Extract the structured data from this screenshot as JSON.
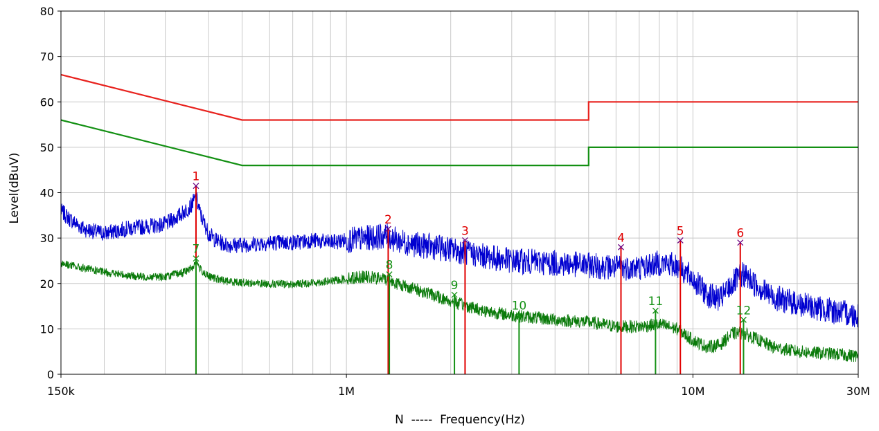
{
  "chart_data": {
    "type": "line",
    "xlabel": "N  -----  Frequency(Hz)",
    "ylabel": "Level(dBuV)",
    "x_scale": "log",
    "xlim": [
      150000,
      30000000
    ],
    "ylim": [
      0,
      80
    ],
    "grid": true,
    "y_ticks": [
      0,
      10,
      20,
      30,
      40,
      50,
      60,
      70,
      80
    ],
    "x_tick_labels": [
      {
        "x": 150000,
        "label": "150k"
      },
      {
        "x": 1000000,
        "label": "1M"
      },
      {
        "x": 10000000,
        "label": "10M"
      },
      {
        "x": 30000000,
        "label": "30M"
      }
    ],
    "colors": {
      "qp_limit": "#e8221e",
      "avg_limit": "#139013",
      "qp_trace": "#0000d0",
      "avg_trace": "#0a7a0a",
      "qp_marker": "#e00000",
      "avg_marker": "#139013",
      "grid": "#c8c8c8"
    },
    "limits": [
      {
        "id": "qp_limit",
        "points": [
          [
            150000,
            66
          ],
          [
            500000,
            56
          ],
          [
            5000000,
            56
          ],
          [
            5000000,
            60
          ],
          [
            30000000,
            60
          ]
        ]
      },
      {
        "id": "avg_limit",
        "points": [
          [
            150000,
            56
          ],
          [
            500000,
            46
          ],
          [
            5000000,
            46
          ],
          [
            5000000,
            50
          ],
          [
            30000000,
            50
          ]
        ]
      }
    ],
    "series": [
      {
        "id": "qp_trace",
        "points": [
          [
            150000,
            36
          ],
          [
            160000,
            34
          ],
          [
            175000,
            32
          ],
          [
            200000,
            31
          ],
          [
            230000,
            32
          ],
          [
            260000,
            32.5
          ],
          [
            300000,
            33
          ],
          [
            330000,
            35
          ],
          [
            355000,
            37
          ],
          [
            368000,
            39
          ],
          [
            380000,
            35
          ],
          [
            400000,
            31
          ],
          [
            420000,
            29.5
          ],
          [
            450000,
            28.5
          ],
          [
            500000,
            28.5
          ],
          [
            600000,
            29
          ],
          [
            700000,
            29
          ],
          [
            800000,
            29.5
          ],
          [
            900000,
            29
          ],
          [
            1000000,
            29.5
          ],
          [
            1150000,
            30
          ],
          [
            1300000,
            30.5
          ],
          [
            1400000,
            29.5
          ],
          [
            1600000,
            28.5
          ],
          [
            2000000,
            27.5
          ],
          [
            2500000,
            26
          ],
          [
            3000000,
            25
          ],
          [
            4000000,
            24.5
          ],
          [
            5000000,
            24
          ],
          [
            6000000,
            23.5
          ],
          [
            7000000,
            23.5
          ],
          [
            8000000,
            24.5
          ],
          [
            9000000,
            24
          ],
          [
            10000000,
            21
          ],
          [
            11000000,
            17.5
          ],
          [
            12000000,
            16.5
          ],
          [
            13000000,
            20
          ],
          [
            14000000,
            22
          ],
          [
            15000000,
            20
          ],
          [
            17000000,
            17
          ],
          [
            20000000,
            15.5
          ],
          [
            25000000,
            14
          ],
          [
            30000000,
            13
          ]
        ],
        "noise": 1.8
      },
      {
        "id": "avg_trace",
        "points": [
          [
            150000,
            24.5
          ],
          [
            170000,
            23.5
          ],
          [
            200000,
            22.5
          ],
          [
            250000,
            21.5
          ],
          [
            300000,
            21.5
          ],
          [
            340000,
            22.5
          ],
          [
            360000,
            23.5
          ],
          [
            368000,
            25
          ],
          [
            380000,
            23
          ],
          [
            400000,
            21.5
          ],
          [
            450000,
            20.5
          ],
          [
            550000,
            20
          ],
          [
            700000,
            19.8
          ],
          [
            900000,
            20.5
          ],
          [
            1100000,
            21.5
          ],
          [
            1300000,
            21
          ],
          [
            1400000,
            20
          ],
          [
            1700000,
            18
          ],
          [
            2000000,
            16
          ],
          [
            2500000,
            14
          ],
          [
            3000000,
            13
          ],
          [
            4000000,
            12
          ],
          [
            5000000,
            11.5
          ],
          [
            6000000,
            10.5
          ],
          [
            7000000,
            10.5
          ],
          [
            8000000,
            11
          ],
          [
            9000000,
            10
          ],
          [
            10000000,
            7.5
          ],
          [
            11000000,
            6
          ],
          [
            12000000,
            6.5
          ],
          [
            13000000,
            9
          ],
          [
            14000000,
            9
          ],
          [
            15000000,
            8
          ],
          [
            17000000,
            6
          ],
          [
            20000000,
            5
          ],
          [
            25000000,
            4.5
          ],
          [
            30000000,
            4
          ]
        ],
        "noise": 0.9
      }
    ],
    "markers": [
      {
        "label": "1",
        "x": 368000,
        "y": 41.5,
        "group": "qp"
      },
      {
        "label": "2",
        "x": 1320000,
        "y": 32,
        "group": "qp"
      },
      {
        "label": "3",
        "x": 2200000,
        "y": 29.5,
        "group": "qp"
      },
      {
        "label": "4",
        "x": 6200000,
        "y": 28,
        "group": "qp"
      },
      {
        "label": "5",
        "x": 9200000,
        "y": 29.5,
        "group": "qp"
      },
      {
        "label": "6",
        "x": 13700000,
        "y": 29,
        "group": "qp"
      },
      {
        "label": "7",
        "x": 368000,
        "y": 25.5,
        "group": "avg"
      },
      {
        "label": "8",
        "x": 1330000,
        "y": 22,
        "group": "avg"
      },
      {
        "label": "9",
        "x": 2050000,
        "y": 17.5,
        "group": "avg"
      },
      {
        "label": "10",
        "x": 3150000,
        "y": 13,
        "group": "avg"
      },
      {
        "label": "11",
        "x": 7800000,
        "y": 14,
        "group": "avg"
      },
      {
        "label": "12",
        "x": 14000000,
        "y": 12,
        "group": "avg"
      }
    ]
  }
}
